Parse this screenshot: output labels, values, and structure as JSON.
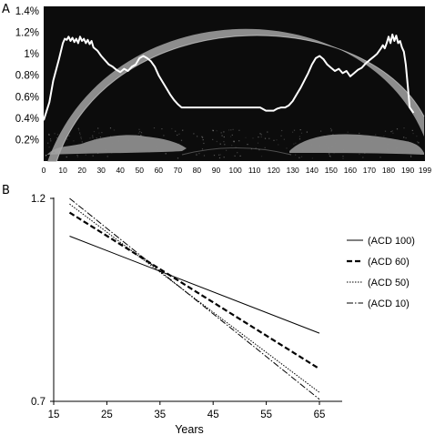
{
  "panels": [
    {
      "letter": "A"
    },
    {
      "letter": "B"
    }
  ],
  "colors": {
    "oct_background": "#0c0c0c",
    "trace": "#ffffff",
    "cornea_tissue": "#b8b8b8",
    "iris_tissue": "#a5a5a5",
    "axis": "#000000",
    "line": "#000000"
  },
  "chart_data": [
    {
      "type": "line",
      "panel": "A",
      "title": "",
      "xlabel": "",
      "ylabel": "",
      "background": "OCT anterior segment image (cornea, iris, lens)",
      "x_ticks": [
        "0",
        "10",
        "20",
        "30",
        "40",
        "50",
        "60",
        "70",
        "80",
        "90",
        "100",
        "110",
        "120",
        "130",
        "140",
        "150",
        "160",
        "170",
        "180",
        "190",
        "199"
      ],
      "y_ticks": [
        "0.2%",
        "0.4%",
        "0.6%",
        "0.8%",
        "1%",
        "1.2%",
        "1.4%"
      ],
      "xlim": [
        0,
        199
      ],
      "ylim": [
        0,
        1.4
      ],
      "series": [
        {
          "x": [
            0,
            3,
            5,
            8,
            10,
            11,
            12,
            13,
            14,
            15,
            16,
            17,
            18,
            19,
            20,
            21,
            22,
            23,
            24,
            25,
            26,
            28,
            30,
            32,
            34,
            36,
            38,
            40,
            42,
            44,
            46,
            48,
            50,
            52,
            54,
            56,
            58,
            60,
            62,
            64,
            66,
            68,
            70,
            72,
            75,
            80,
            90,
            100,
            110,
            113,
            116,
            118,
            120,
            122,
            124,
            126,
            128,
            130,
            132,
            134,
            136,
            138,
            140,
            142,
            144,
            146,
            148,
            150,
            152,
            154,
            156,
            158,
            160,
            162,
            164,
            166,
            168,
            170,
            172,
            174,
            176,
            177,
            178,
            179,
            180,
            181,
            182,
            183,
            184,
            185,
            186,
            187,
            188,
            189,
            190,
            191,
            193
          ],
          "y": [
            0.38,
            0.55,
            0.75,
            0.95,
            1.1,
            1.14,
            1.13,
            1.16,
            1.12,
            1.15,
            1.11,
            1.14,
            1.1,
            1.16,
            1.12,
            1.14,
            1.1,
            1.13,
            1.09,
            1.12,
            1.06,
            1.03,
            0.98,
            0.94,
            0.9,
            0.88,
            0.85,
            0.83,
            0.86,
            0.84,
            0.88,
            0.9,
            0.96,
            0.98,
            0.96,
            0.93,
            0.88,
            0.8,
            0.74,
            0.68,
            0.62,
            0.57,
            0.53,
            0.5,
            0.5,
            0.5,
            0.5,
            0.5,
            0.5,
            0.5,
            0.47,
            0.47,
            0.47,
            0.49,
            0.5,
            0.5,
            0.52,
            0.56,
            0.62,
            0.68,
            0.75,
            0.82,
            0.9,
            0.96,
            0.98,
            0.95,
            0.9,
            0.87,
            0.84,
            0.86,
            0.82,
            0.84,
            0.79,
            0.82,
            0.85,
            0.87,
            0.91,
            0.94,
            0.97,
            1.0,
            1.05,
            1.08,
            1.05,
            1.1,
            1.16,
            1.1,
            1.18,
            1.12,
            1.17,
            1.1,
            1.12,
            1.06,
            1.02,
            0.9,
            0.7,
            0.5,
            0.45
          ]
        }
      ]
    },
    {
      "type": "line",
      "panel": "B",
      "title": "",
      "xlabel": "Years",
      "ylabel": "",
      "x_ticks": [
        "15",
        "25",
        "35",
        "45",
        "55",
        "65"
      ],
      "y_ticks": [
        "1.2",
        "0.7"
      ],
      "xlim": [
        15,
        70
      ],
      "ylim": [
        0.7,
        1.2
      ],
      "grid": false,
      "legend": "right",
      "series": [
        {
          "name": "(ACD 100)",
          "style": "solid",
          "x": [
            18,
            65
          ],
          "y": [
            1.107,
            0.868
          ]
        },
        {
          "name": "(ACD 60)",
          "style": "dashed",
          "x": [
            18,
            65
          ],
          "y": [
            1.165,
            0.78
          ]
        },
        {
          "name": "(ACD 50)",
          "style": "dotted",
          "x": [
            18,
            65
          ],
          "y": [
            1.186,
            0.722
          ]
        },
        {
          "name": "(ACD 10)",
          "style": "dashdot",
          "x": [
            18,
            65
          ],
          "y": [
            1.2,
            0.705
          ]
        }
      ]
    }
  ]
}
